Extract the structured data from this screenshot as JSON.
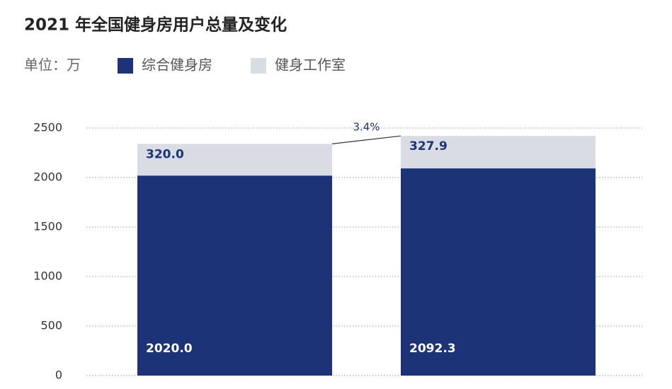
{
  "chart_data": {
    "type": "stacked-bar",
    "title": "2021 年全国健身房用户总量及变化",
    "unit_label": "单位：万",
    "categories": [
      null,
      null
    ],
    "series": [
      {
        "name": "综合健身房",
        "color": "#1c3477",
        "values": [
          2020.0,
          2092.3
        ],
        "value_labels": [
          "2020.0",
          "2092.3"
        ]
      },
      {
        "name": "健身工作室",
        "color": "#d9dce3",
        "values": [
          320.0,
          327.9
        ],
        "value_labels": [
          "320.0",
          "327.9"
        ]
      }
    ],
    "annotation": "3.4%",
    "ylim": [
      0,
      2500
    ],
    "yticks": [
      0,
      500,
      1000,
      1500,
      2000,
      2500
    ],
    "grid": true
  }
}
